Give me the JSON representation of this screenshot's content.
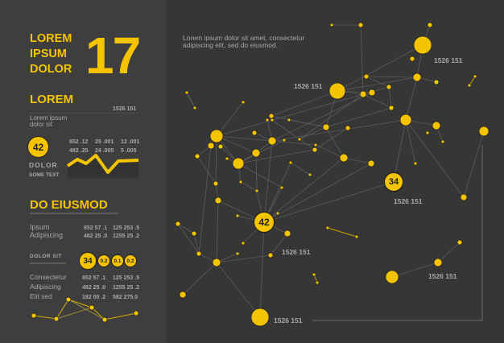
{
  "colors": {
    "accent": "#f5c400",
    "panel": "#3e3e3e",
    "background": "#363636"
  },
  "left": {
    "headline": [
      "LOREM",
      "IPSUM",
      "DOLOR"
    ],
    "big_number": "17",
    "section1": {
      "title": "LOREM",
      "value": "1526 151",
      "desc": [
        "Lorem ipsum",
        "dolor sit"
      ],
      "badge": "42",
      "rows": [
        [
          "852 .12",
          "25 .001",
          "12 .001"
        ],
        [
          "482 .25",
          "24 .005",
          "5 .005"
        ]
      ],
      "label": "DOLOR",
      "sublabel": "SOME TEXT"
    },
    "section2": {
      "title": "DO EIUSMOD",
      "rows": [
        [
          "Ipsum",
          "852 57 .1",
          "125 253 .5"
        ],
        [
          "Adipiscing",
          "482 25 .0",
          "1255 25 .2"
        ]
      ],
      "subtitle": "DOLOR SIT",
      "badges": [
        "34",
        "0.2",
        "0.1",
        "0.2"
      ],
      "rows2": [
        [
          "Consectetur",
          "852 57 .1",
          "125 253 .5"
        ],
        [
          "Adipiscing",
          "482 25 .0",
          "1255 25 .2"
        ],
        [
          "Elit sed",
          "182 00 .2",
          "582 275.0"
        ]
      ]
    }
  },
  "network": {
    "intro": [
      "Lorem ipsum dolor sit amet, consectetur",
      "adipiscing elit, sed do eiusmod."
    ],
    "labels": [
      "1526 151",
      "1526 151",
      "1526 151",
      "1526 151",
      "1526 151",
      "1526 151"
    ],
    "node_badges": [
      "42",
      "34"
    ]
  }
}
